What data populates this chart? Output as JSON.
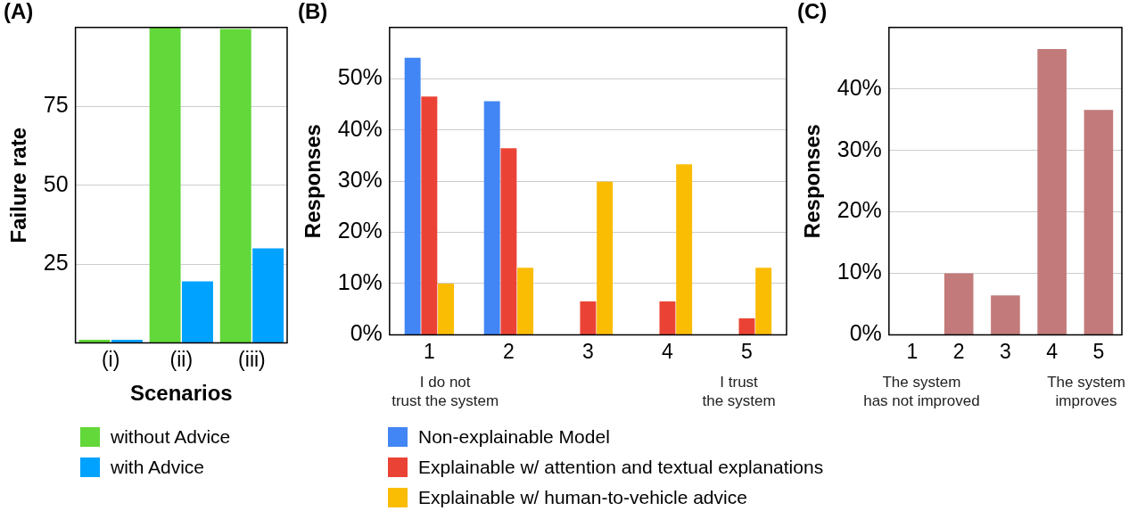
{
  "chart_data": [
    {
      "type": "bar",
      "title": "(A)",
      "xlabel": "Scenarios",
      "ylabel": "Failure rate",
      "categories": [
        "(i)",
        "(ii)",
        "(iii)"
      ],
      "series": [
        {
          "name": "without Advice",
          "color": "#62d83a",
          "values": [
            1,
            100,
            99.5
          ]
        },
        {
          "name": "with Advice",
          "color": "#00a2ff",
          "values": [
            1,
            19.5,
            30
          ]
        }
      ],
      "ylim": [
        0,
        100
      ],
      "yticks": [
        25,
        50,
        75
      ],
      "grid": "y",
      "legend": "bottom"
    },
    {
      "type": "bar",
      "title": "(B)",
      "ylabel": "Responses",
      "categories": [
        "1",
        "2",
        "3",
        "4",
        "5"
      ],
      "series": [
        {
          "name": "Non-explainable Model",
          "color": "#4285f4",
          "values": [
            54.1,
            45.6,
            0,
            0,
            0
          ]
        },
        {
          "name": "Explainable w/ attention and textual explanations",
          "color": "#ea4335",
          "values": [
            46.5,
            36.4,
            6.5,
            6.5,
            3.2
          ]
        },
        {
          "name": "Explainable w/ human-to-vehicle advice",
          "color": "#fbbc04",
          "values": [
            10,
            13.1,
            29.9,
            33.3,
            13.1
          ]
        }
      ],
      "ylim": [
        0,
        60
      ],
      "yticks": [
        {
          "value": 0,
          "label": "0%"
        },
        {
          "value": 10,
          "label": "10%"
        },
        {
          "value": 20,
          "label": "20%"
        },
        {
          "value": 30,
          "label": "30%"
        },
        {
          "value": 40,
          "label": "40%"
        },
        {
          "value": 50,
          "label": "50%"
        }
      ],
      "annotations": [
        "I do not\ntrust the system",
        "I trust\nthe system"
      ],
      "grid": "y",
      "legend": "bottom"
    },
    {
      "type": "bar",
      "title": "(C)",
      "ylabel": "Responses",
      "categories": [
        "1",
        "2",
        "3",
        "4",
        "5"
      ],
      "values": [
        0,
        10,
        6.4,
        46.5,
        36.6
      ],
      "color": "#c27a7a",
      "ylim": [
        0,
        50
      ],
      "yticks": [
        {
          "value": 0,
          "label": "0%"
        },
        {
          "value": 10,
          "label": "10%"
        },
        {
          "value": 20,
          "label": "20%"
        },
        {
          "value": 30,
          "label": "30%"
        },
        {
          "value": 40,
          "label": "40%"
        }
      ],
      "annotations": [
        "The system\nhas not improved",
        "The system\nimproves"
      ],
      "grid": "y"
    }
  ]
}
